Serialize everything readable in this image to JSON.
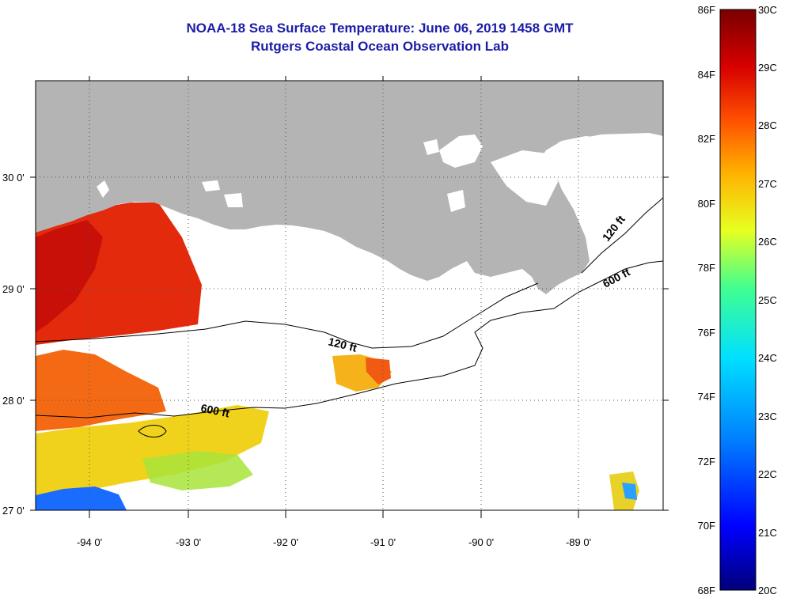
{
  "title": "NOAA-18 Sea Surface Temperature:  June 06, 2019 1458 GMT",
  "subtitle": "Rutgers Coastal Ocean Observation Lab",
  "map": {
    "lon_ticks": [
      "-94 0'",
      "-93 0'",
      "-92 0'",
      "-91 0'",
      "-90 0'",
      "-89 0'"
    ],
    "lat_ticks": [
      "30 0'",
      "29 0'",
      "28 0'",
      "27 0'"
    ],
    "contours": [
      {
        "label": "120 ft",
        "where": "shelf offshore of Louisiana"
      },
      {
        "label": "120 ft",
        "where": "east of Mississippi delta"
      },
      {
        "label": "600 ft",
        "where": "western Gulf shelf edge"
      },
      {
        "label": "600 ft",
        "where": "south of Mississippi delta"
      }
    ],
    "land_color": "#b4b4b4",
    "no_data_color": "#ffffff"
  },
  "colorbar": {
    "fahrenheit_labels": [
      "86F",
      "84F",
      "82F",
      "80F",
      "78F",
      "76F",
      "74F",
      "72F",
      "70F",
      "68F"
    ],
    "celsius_labels": [
      "30C",
      "29C",
      "28C",
      "27C",
      "26C",
      "25C",
      "24C",
      "23C",
      "22C",
      "21C",
      "20C"
    ],
    "range_c": [
      20,
      30
    ],
    "range_f": [
      68,
      86
    ],
    "colors": [
      "#00007a",
      "#0000ff",
      "#0080ff",
      "#00e0ff",
      "#40ff90",
      "#e8ff20",
      "#ffb000",
      "#ff5000",
      "#d80000",
      "#7a0000"
    ]
  }
}
